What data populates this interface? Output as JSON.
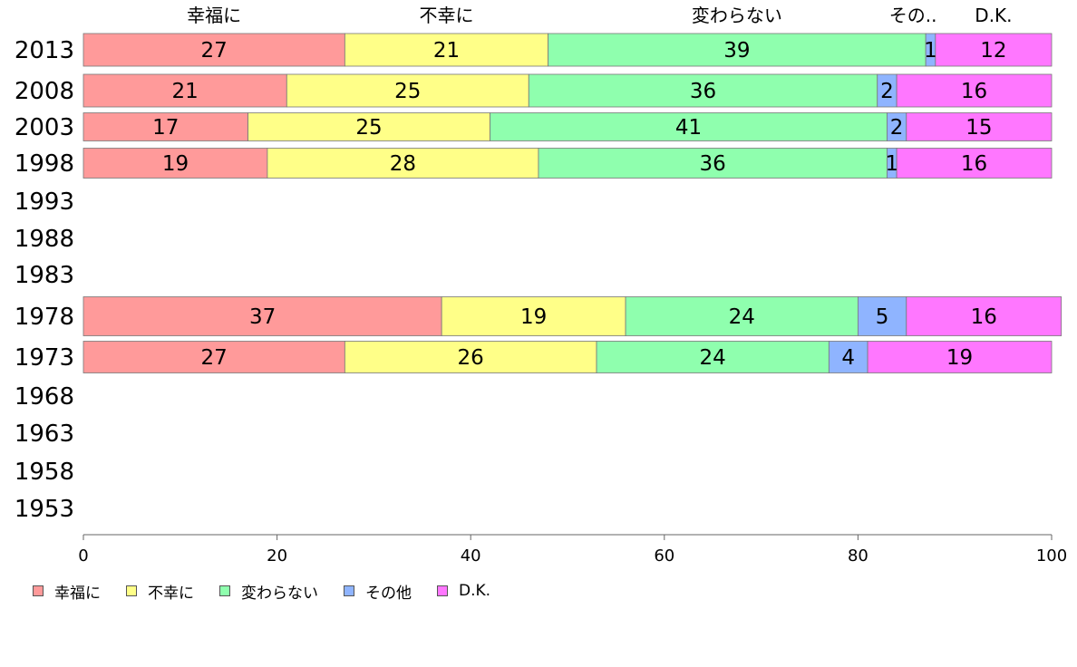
{
  "chart_data": {
    "type": "bar",
    "orientation": "horizontal",
    "stacked": true,
    "categories": [
      "2013",
      "2008",
      "2003",
      "1998",
      "1993",
      "1988",
      "1983",
      "1978",
      "1973",
      "1968",
      "1963",
      "1958",
      "1953"
    ],
    "series": [
      {
        "name": "幸福に",
        "color": "#ff9a9a",
        "values": [
          27,
          21,
          17,
          19,
          null,
          null,
          null,
          37,
          27,
          null,
          null,
          null,
          null
        ]
      },
      {
        "name": "不幸に",
        "color": "#ffff88",
        "values": [
          21,
          25,
          25,
          28,
          null,
          null,
          null,
          19,
          26,
          null,
          null,
          null,
          null
        ]
      },
      {
        "name": "変わらない",
        "color": "#8fffae",
        "values": [
          39,
          36,
          41,
          36,
          null,
          null,
          null,
          24,
          24,
          null,
          null,
          null,
          null
        ]
      },
      {
        "name": "その他",
        "color": "#8fb4ff",
        "values": [
          1,
          2,
          2,
          1,
          null,
          null,
          null,
          5,
          4,
          null,
          null,
          null,
          null
        ]
      },
      {
        "name": "D.K.",
        "color": "#ff77ff",
        "values": [
          12,
          16,
          15,
          16,
          null,
          null,
          null,
          16,
          19,
          null,
          null,
          null,
          null
        ]
      }
    ],
    "top_labels": [
      "幸福に",
      "不幸に",
      "変わらない",
      "その..",
      "D.K."
    ],
    "xlim": [
      0,
      100
    ],
    "xticks": [
      0,
      20,
      40,
      60,
      80,
      100
    ],
    "xlabel": "",
    "ylabel": "",
    "title": "",
    "grid": false,
    "legend_position": "bottom-left"
  }
}
